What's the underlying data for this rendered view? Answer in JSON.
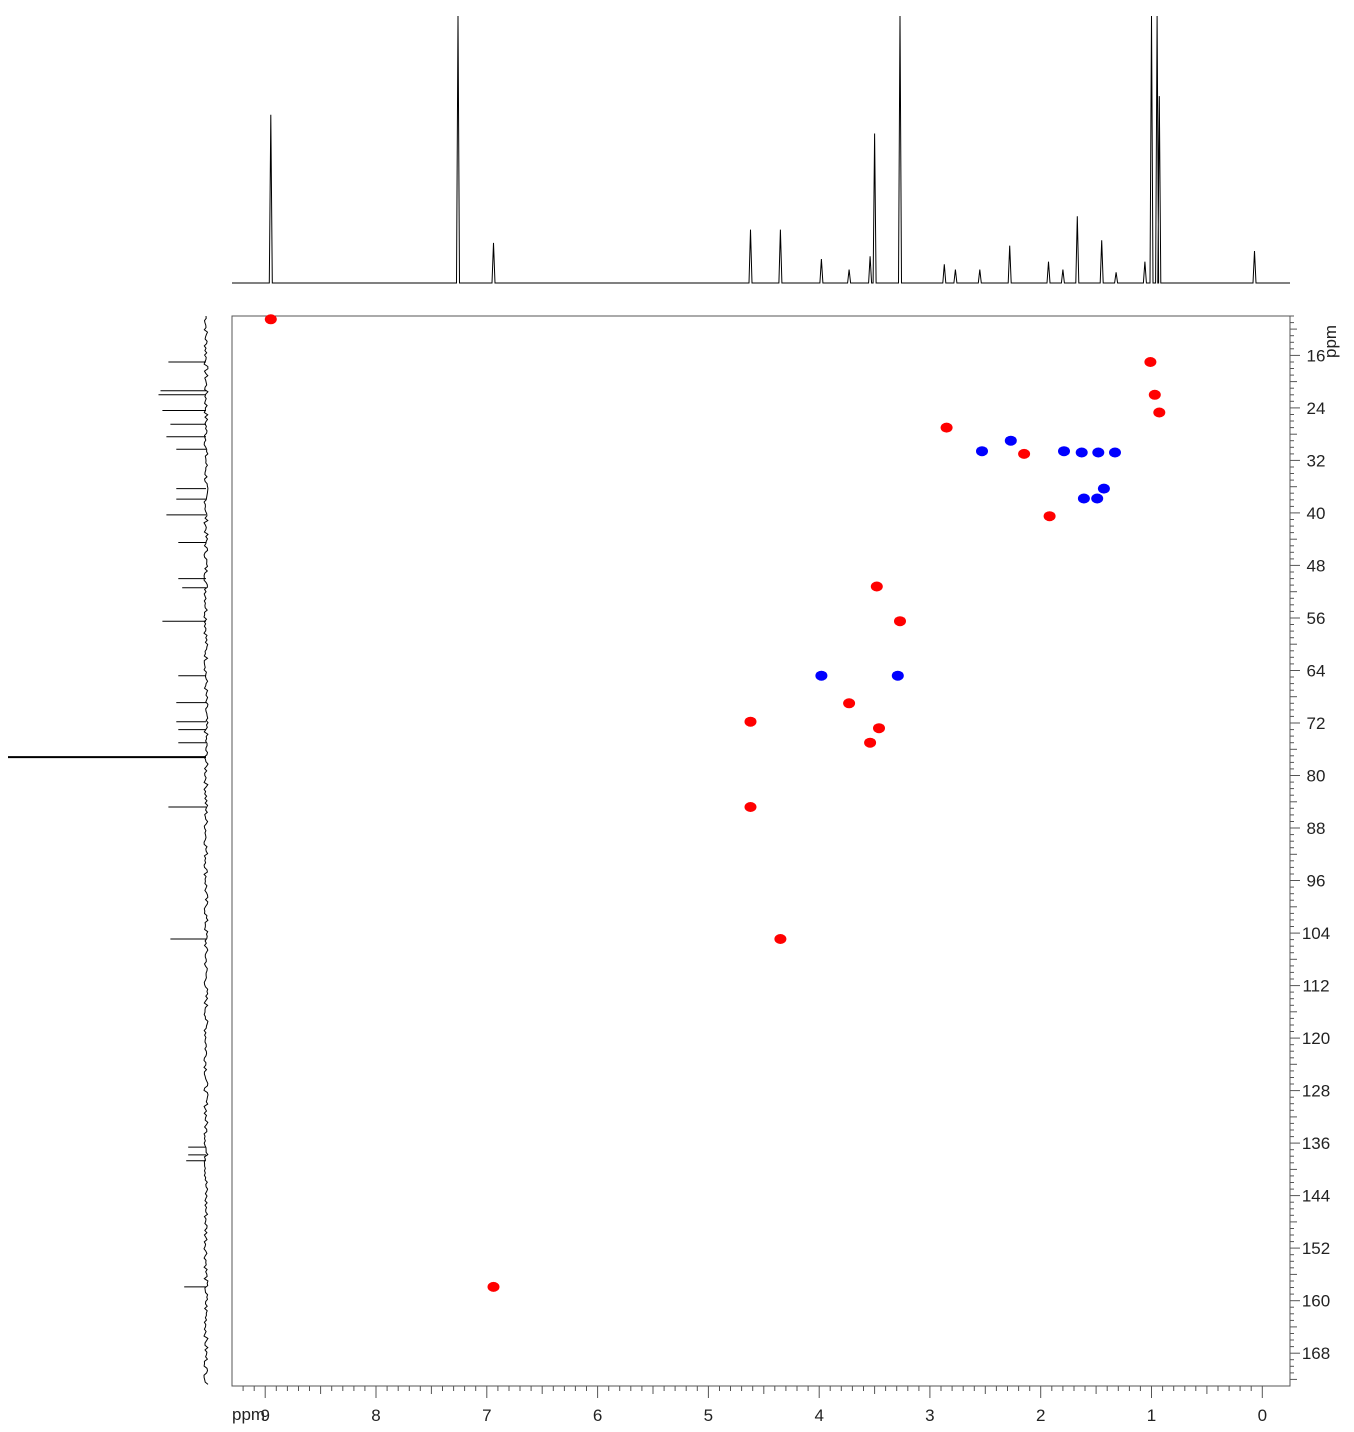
{
  "chart_data": {
    "type": "scatter",
    "title": "",
    "xlabel": "ppm",
    "ylabel": "ppm",
    "x_axis": {
      "range": [
        9.3,
        -0.25
      ],
      "reversed": true,
      "ticks": [
        9,
        8,
        7,
        6,
        5,
        4,
        3,
        2,
        1,
        0
      ]
    },
    "y_axis": {
      "range": [
        10,
        173
      ],
      "reversed": true,
      "ticks": [
        16,
        24,
        32,
        40,
        48,
        56,
        64,
        72,
        80,
        88,
        96,
        104,
        112,
        120,
        128,
        136,
        144,
        152,
        160,
        168
      ]
    },
    "grid": false,
    "legend": "none",
    "colors": {
      "positive": "#ff0000",
      "negative": "#0000ff",
      "trace": "#000000",
      "frame": "#555555"
    },
    "series": [
      {
        "sign": "positive",
        "color": "#ff0000",
        "points": [
          {
            "x": 8.95,
            "y": 10.5
          },
          {
            "x": 1.01,
            "y": 17.0
          },
          {
            "x": 0.97,
            "y": 22.0
          },
          {
            "x": 0.93,
            "y": 24.7
          },
          {
            "x": 2.85,
            "y": 27.0
          },
          {
            "x": 2.15,
            "y": 31.0
          },
          {
            "x": 1.92,
            "y": 40.5
          },
          {
            "x": 3.48,
            "y": 51.2
          },
          {
            "x": 3.27,
            "y": 56.5
          },
          {
            "x": 3.73,
            "y": 69.0
          },
          {
            "x": 4.62,
            "y": 71.8
          },
          {
            "x": 3.46,
            "y": 72.8
          },
          {
            "x": 3.54,
            "y": 75.0
          },
          {
            "x": 4.62,
            "y": 84.8
          },
          {
            "x": 4.35,
            "y": 104.9
          },
          {
            "x": 6.94,
            "y": 157.9
          }
        ]
      },
      {
        "sign": "negative",
        "color": "#0000ff",
        "points": [
          {
            "x": 2.27,
            "y": 29.0
          },
          {
            "x": 2.53,
            "y": 30.6
          },
          {
            "x": 1.79,
            "y": 30.6
          },
          {
            "x": 1.63,
            "y": 30.8
          },
          {
            "x": 1.48,
            "y": 30.8
          },
          {
            "x": 1.33,
            "y": 30.8
          },
          {
            "x": 1.43,
            "y": 36.3
          },
          {
            "x": 1.49,
            "y": 37.8
          },
          {
            "x": 1.61,
            "y": 37.8
          },
          {
            "x": 3.98,
            "y": 64.8
          },
          {
            "x": 3.29,
            "y": 64.8
          }
        ]
      }
    ],
    "proton_projection": {
      "peaks": [
        {
          "x": 8.95,
          "h": 0.63
        },
        {
          "x": 7.26,
          "h": 1.0
        },
        {
          "x": 6.94,
          "h": 0.15
        },
        {
          "x": 4.62,
          "h": 0.2
        },
        {
          "x": 4.35,
          "h": 0.2
        },
        {
          "x": 3.98,
          "h": 0.09
        },
        {
          "x": 3.73,
          "h": 0.05
        },
        {
          "x": 3.54,
          "h": 0.1
        },
        {
          "x": 3.5,
          "h": 0.56
        },
        {
          "x": 3.27,
          "h": 1.0
        },
        {
          "x": 2.87,
          "h": 0.07
        },
        {
          "x": 2.77,
          "h": 0.05
        },
        {
          "x": 2.55,
          "h": 0.05
        },
        {
          "x": 2.28,
          "h": 0.14
        },
        {
          "x": 1.93,
          "h": 0.08
        },
        {
          "x": 1.8,
          "h": 0.05
        },
        {
          "x": 1.67,
          "h": 0.25
        },
        {
          "x": 1.45,
          "h": 0.16
        },
        {
          "x": 1.32,
          "h": 0.04
        },
        {
          "x": 1.06,
          "h": 0.08
        },
        {
          "x": 1.0,
          "h": 1.0
        },
        {
          "x": 0.95,
          "h": 1.0
        },
        {
          "x": 0.93,
          "h": 0.7
        },
        {
          "x": 0.07,
          "h": 0.12
        }
      ]
    },
    "carbon_projection": {
      "peaks": [
        {
          "y": 17.0,
          "h": 0.19
        },
        {
          "y": 21.4,
          "h": 0.23
        },
        {
          "y": 22.0,
          "h": 0.24
        },
        {
          "y": 24.4,
          "h": 0.22
        },
        {
          "y": 26.5,
          "h": 0.18
        },
        {
          "y": 28.4,
          "h": 0.2
        },
        {
          "y": 30.3,
          "h": 0.15
        },
        {
          "y": 36.3,
          "h": 0.15
        },
        {
          "y": 37.9,
          "h": 0.15
        },
        {
          "y": 40.3,
          "h": 0.2
        },
        {
          "y": 44.5,
          "h": 0.14
        },
        {
          "y": 50.0,
          "h": 0.14
        },
        {
          "y": 51.4,
          "h": 0.12
        },
        {
          "y": 56.5,
          "h": 0.22
        },
        {
          "y": 64.8,
          "h": 0.14
        },
        {
          "y": 68.9,
          "h": 0.15
        },
        {
          "y": 71.8,
          "h": 0.15
        },
        {
          "y": 73.0,
          "h": 0.14
        },
        {
          "y": 75.0,
          "h": 0.14
        },
        {
          "y": 77.2,
          "h": 1.0
        },
        {
          "y": 84.8,
          "h": 0.19
        },
        {
          "y": 104.9,
          "h": 0.18
        },
        {
          "y": 136.6,
          "h": 0.09
        },
        {
          "y": 137.8,
          "h": 0.09
        },
        {
          "y": 138.7,
          "h": 0.1
        },
        {
          "y": 157.9,
          "h": 0.11
        }
      ]
    }
  }
}
